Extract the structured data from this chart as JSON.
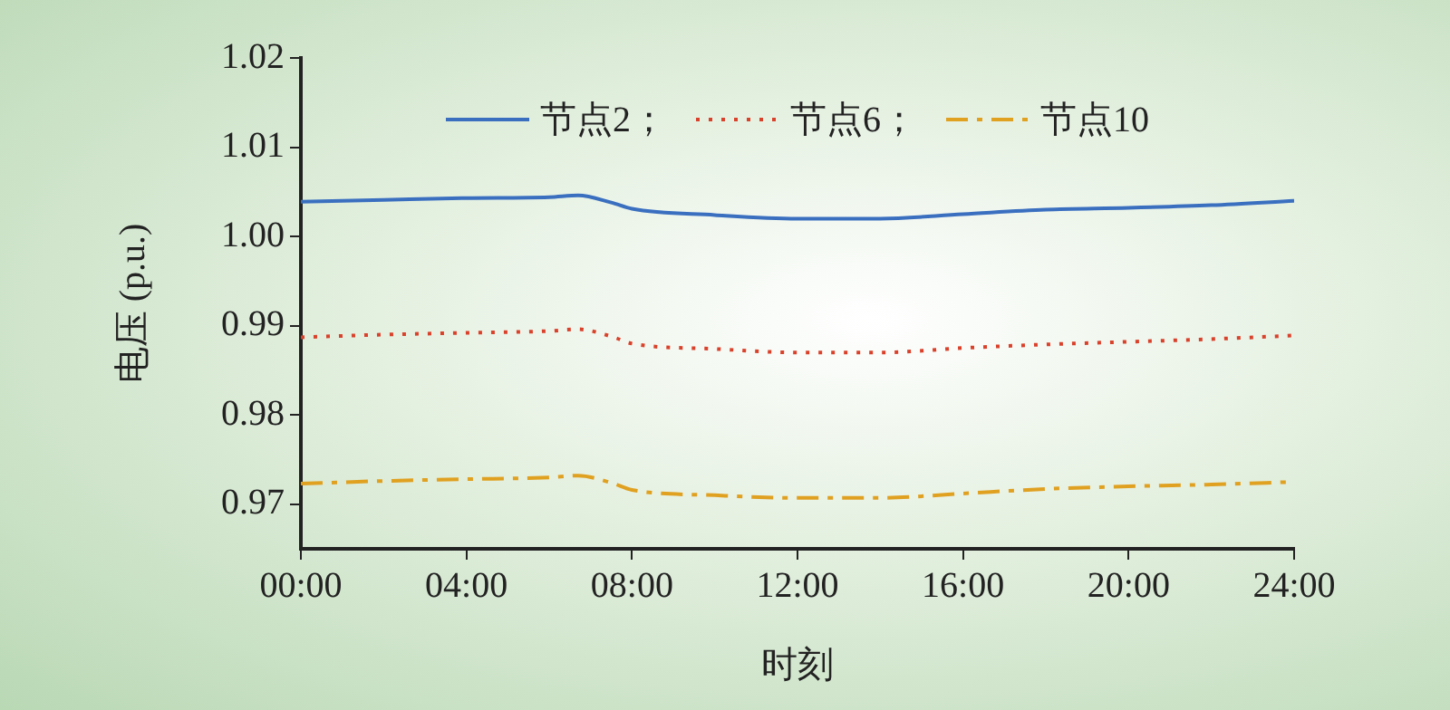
{
  "chart_data": {
    "type": "line",
    "xlabel": "时刻",
    "ylabel": "电压 (p.u.)",
    "x": [
      0,
      2,
      4,
      6,
      6.7,
      7.5,
      8,
      10,
      12,
      14,
      16,
      18,
      20,
      22,
      24
    ],
    "xlim": [
      0,
      24
    ],
    "xticks": [
      {
        "value": 0,
        "label": "00:00"
      },
      {
        "value": 4,
        "label": "04:00"
      },
      {
        "value": 8,
        "label": "08:00"
      },
      {
        "value": 12,
        "label": "12:00"
      },
      {
        "value": 16,
        "label": "16:00"
      },
      {
        "value": 20,
        "label": "20:00"
      },
      {
        "value": 24,
        "label": "24:00"
      }
    ],
    "ylim": [
      0.965,
      1.02
    ],
    "yticks": [
      {
        "value": 0.97,
        "label": "0.97"
      },
      {
        "value": 0.98,
        "label": "0.98"
      },
      {
        "value": 0.99,
        "label": "0.99"
      },
      {
        "value": 1.0,
        "label": "1.00"
      },
      {
        "value": 1.01,
        "label": "1.01"
      },
      {
        "value": 1.02,
        "label": "1.02"
      }
    ],
    "series": [
      {
        "name": "节点2；",
        "color": "#3a6fc0",
        "line_style": "solid",
        "values": [
          1.0039,
          1.0041,
          1.0043,
          1.0044,
          1.0046,
          1.0038,
          1.0031,
          1.0024,
          1.002,
          1.002,
          1.0025,
          1.003,
          1.0032,
          1.0035,
          1.004
        ]
      },
      {
        "name": "节点6；",
        "color": "#d9412b",
        "line_style": "dotted",
        "values": [
          0.9887,
          0.989,
          0.9892,
          0.9894,
          0.9896,
          0.9888,
          0.988,
          0.9874,
          0.987,
          0.987,
          0.9875,
          0.9879,
          0.9882,
          0.9885,
          0.9889
        ]
      },
      {
        "name": "节点10",
        "color": "#e0a020",
        "line_style": "dashed",
        "values": [
          0.9723,
          0.9726,
          0.9728,
          0.973,
          0.9732,
          0.9724,
          0.9716,
          0.971,
          0.9707,
          0.9707,
          0.9712,
          0.9717,
          0.972,
          0.9722,
          0.9725
        ]
      }
    ],
    "grid": false,
    "legend": "top",
    "marker": "none"
  }
}
